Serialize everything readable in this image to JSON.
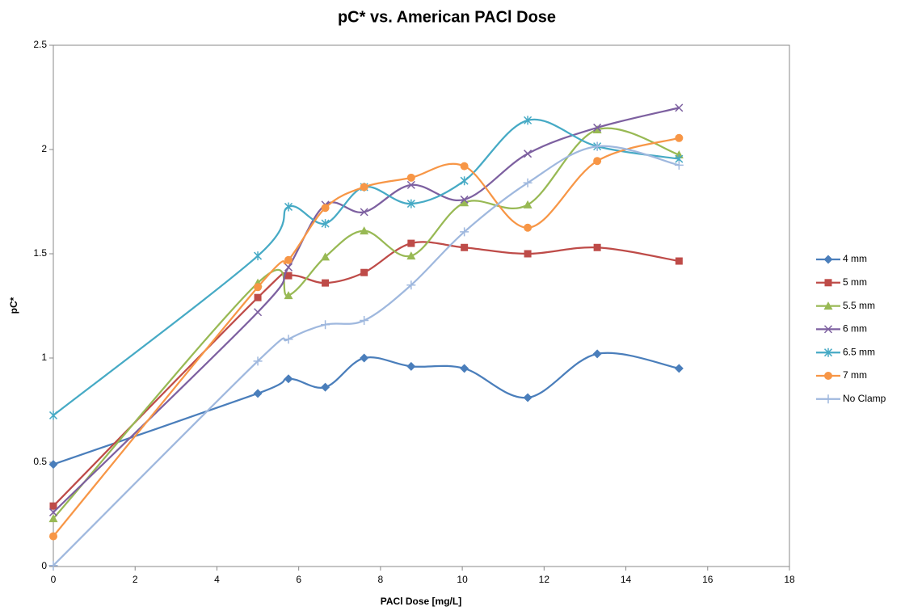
{
  "chart_data": {
    "type": "line",
    "smooth": true,
    "title": "pC* vs. American PACl Dose",
    "x_label": "PACl Dose [mg/L]",
    "y_label": "pC*",
    "xlim": [
      0,
      18
    ],
    "xticks": [
      0,
      2,
      4,
      6,
      8,
      10,
      12,
      14,
      16,
      18
    ],
    "ylim": [
      0,
      2.5
    ],
    "yticks": [
      0,
      0.5,
      1,
      1.5,
      2,
      2.5
    ],
    "grid": false,
    "legend": "right",
    "x": [
      0,
      5,
      5.75,
      6.65,
      7.6,
      8.75,
      10.05,
      11.6,
      13.3,
      15.3
    ],
    "series": [
      {
        "name": "4 mm",
        "color": "#4a7ebb",
        "marker": "diamond",
        "values": [
          0.49,
          0.83,
          0.9,
          0.86,
          1.0,
          0.96,
          0.95,
          0.81,
          1.02,
          0.95
        ]
      },
      {
        "name": "5 mm",
        "color": "#be4b48",
        "marker": "square",
        "values": [
          0.29,
          1.29,
          1.395,
          1.36,
          1.41,
          1.55,
          1.53,
          1.5,
          1.53,
          1.465
        ]
      },
      {
        "name": "5.5 mm",
        "color": "#98b954",
        "marker": "triangle",
        "values": [
          0.23,
          1.36,
          1.3,
          1.485,
          1.61,
          1.49,
          1.745,
          1.735,
          2.095,
          1.975
        ]
      },
      {
        "name": "6 mm",
        "color": "#7d60a0",
        "marker": "x",
        "values": [
          0.26,
          1.22,
          1.435,
          1.735,
          1.7,
          1.83,
          1.76,
          1.98,
          2.105,
          2.2
        ]
      },
      {
        "name": "6.5 mm",
        "color": "#46aac5",
        "marker": "star",
        "values": [
          0.725,
          1.49,
          1.725,
          1.645,
          1.82,
          1.74,
          1.85,
          2.14,
          2.015,
          1.955
        ]
      },
      {
        "name": "7 mm",
        "color": "#f79646",
        "marker": "circle",
        "values": [
          0.145,
          1.34,
          1.47,
          1.72,
          1.82,
          1.865,
          1.92,
          1.625,
          1.945,
          2.055
        ]
      },
      {
        "name": "No Clamp",
        "color": "#9fb8de",
        "marker": "plus",
        "values": [
          0.005,
          0.985,
          1.09,
          1.16,
          1.18,
          1.35,
          1.605,
          1.84,
          2.015,
          1.925
        ]
      }
    ]
  }
}
